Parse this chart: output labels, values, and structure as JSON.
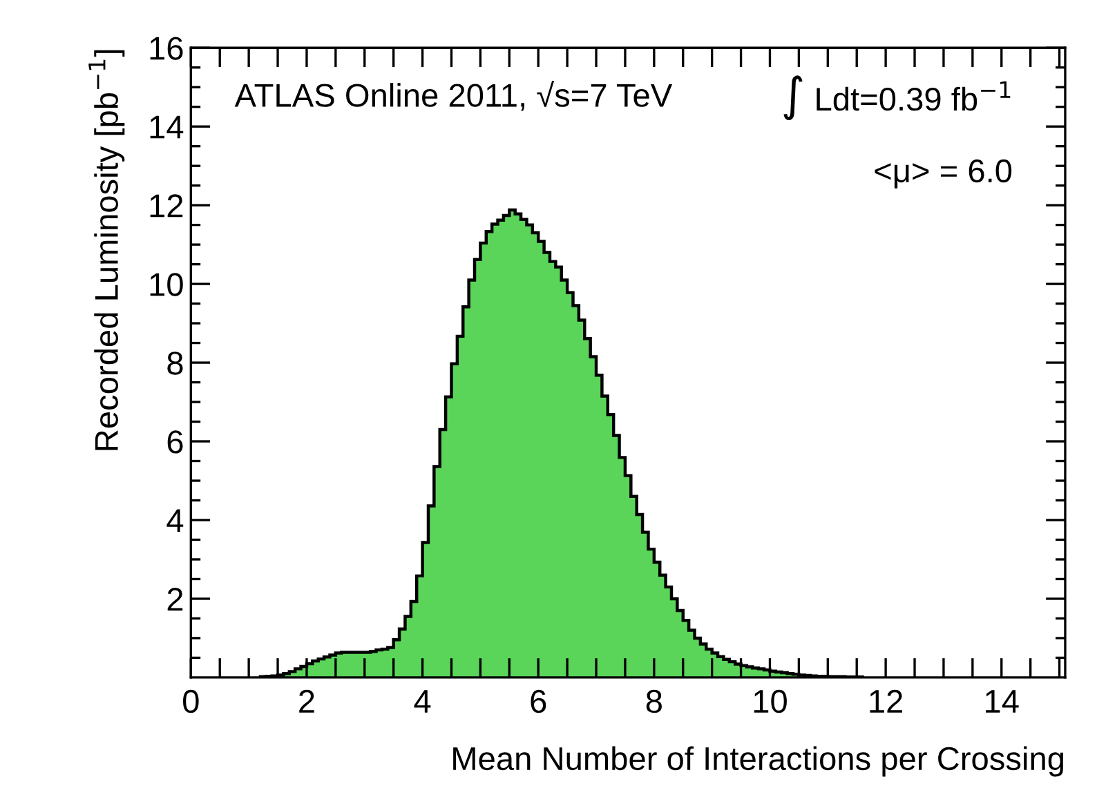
{
  "chart_data": {
    "type": "histogram",
    "xlabel": "Mean Number of Interactions per Crossing",
    "ylabel": "Recorded Luminosity [pb$^{−1}$]",
    "annotations": [
      "ATLAS Online 2011, √s=7 TeV",
      "∫ Ldt=0.39 fb$^{−1}$",
      "<μ> = 6.0"
    ],
    "color": "#5ad55a",
    "bins": [
      1.2,
      1.3,
      1.4,
      1.5,
      1.6,
      1.7,
      1.8,
      1.9,
      2.0,
      2.1,
      2.2,
      2.3,
      2.4,
      2.5,
      2.6,
      2.7,
      2.8,
      2.9,
      3.0,
      3.1,
      3.2,
      3.3,
      3.4,
      3.5,
      3.6,
      3.7,
      3.8,
      3.9,
      4.0,
      4.1,
      4.2,
      4.3,
      4.4,
      4.5,
      4.6,
      4.7,
      4.8,
      4.9,
      5.0,
      5.1,
      5.2,
      5.3,
      5.4,
      5.5,
      5.6,
      5.7,
      5.8,
      5.9,
      6.0,
      6.1,
      6.2,
      6.3,
      6.4,
      6.5,
      6.6,
      6.7,
      6.8,
      6.9,
      7.0,
      7.1,
      7.2,
      7.3,
      7.4,
      7.5,
      7.6,
      7.7,
      7.8,
      7.9,
      8.0,
      8.1,
      8.2,
      8.3,
      8.4,
      8.5,
      8.6,
      8.7,
      8.8,
      8.9,
      9.0,
      9.1,
      9.2,
      9.3,
      9.4,
      9.5,
      9.6,
      9.7,
      9.8,
      9.9,
      10.0,
      10.1,
      10.2,
      10.3,
      10.4,
      10.5,
      10.6,
      10.7,
      10.8,
      10.9,
      11.0,
      11.1,
      11.2,
      11.3,
      11.4,
      11.5,
      11.6
    ],
    "values": [
      0.02,
      0.03,
      0.04,
      0.06,
      0.1,
      0.15,
      0.22,
      0.28,
      0.35,
      0.42,
      0.47,
      0.52,
      0.57,
      0.62,
      0.64,
      0.64,
      0.64,
      0.64,
      0.64,
      0.66,
      0.7,
      0.72,
      0.76,
      0.96,
      1.23,
      1.55,
      1.93,
      2.58,
      3.43,
      4.36,
      5.36,
      6.3,
      7.13,
      7.97,
      8.67,
      9.42,
      10.1,
      10.62,
      11.04,
      11.33,
      11.52,
      11.62,
      11.74,
      11.88,
      11.78,
      11.64,
      11.5,
      11.3,
      11.08,
      10.8,
      10.57,
      10.43,
      10.1,
      9.78,
      9.45,
      9.08,
      8.61,
      8.15,
      7.68,
      7.15,
      6.68,
      6.15,
      5.59,
      5.13,
      4.6,
      4.14,
      3.69,
      3.26,
      2.93,
      2.6,
      2.3,
      2.0,
      1.7,
      1.45,
      1.2,
      1.0,
      0.85,
      0.72,
      0.62,
      0.53,
      0.46,
      0.4,
      0.34,
      0.3,
      0.27,
      0.24,
      0.22,
      0.19,
      0.16,
      0.14,
      0.12,
      0.1,
      0.08,
      0.06,
      0.05,
      0.04,
      0.03,
      0.03,
      0.02,
      0.02,
      0.02,
      0.01,
      0.01,
      0.01
    ],
    "xlim": [
      0,
      15.1
    ],
    "ylim": [
      0,
      16
    ],
    "xticks": [
      0,
      {
        "value": 0.5,
        "label": null
      },
      {
        "value": 1,
        "label": null
      },
      {
        "value": 1.5,
        "label": null
      },
      2,
      {
        "value": 2.5,
        "label": null
      },
      {
        "value": 3,
        "label": null
      },
      {
        "value": 3.5,
        "label": null
      },
      4,
      {
        "value": 4.5,
        "label": null
      },
      {
        "value": 5,
        "label": null
      },
      {
        "value": 5.5,
        "label": null
      },
      6,
      {
        "value": 6.5,
        "label": null
      },
      {
        "value": 7,
        "label": null
      },
      {
        "value": 7.5,
        "label": null
      },
      8,
      {
        "value": 8.5,
        "label": null
      },
      {
        "value": 9,
        "label": null
      },
      {
        "value": 9.5,
        "label": null
      },
      10,
      {
        "value": 10.5,
        "label": null
      },
      {
        "value": 11,
        "label": null
      },
      {
        "value": 11.5,
        "label": null
      },
      12,
      {
        "value": 12.5,
        "label": null
      },
      {
        "value": 13,
        "label": null
      },
      {
        "value": 13.5,
        "label": null
      },
      14,
      {
        "value": 14.5,
        "label": null
      },
      {
        "value": 15,
        "label": null
      }
    ],
    "yticks": [
      {
        "value": 0.5,
        "label": null
      },
      {
        "value": 1,
        "label": null
      },
      {
        "value": 1.5,
        "label": null
      },
      2,
      {
        "value": 2.5,
        "label": null
      },
      {
        "value": 3,
        "label": null
      },
      {
        "value": 3.5,
        "label": null
      },
      4,
      {
        "value": 4.5,
        "label": null
      },
      {
        "value": 5,
        "label": null
      },
      {
        "value": 5.5,
        "label": null
      },
      6,
      {
        "value": 6.5,
        "label": null
      },
      {
        "value": 7,
        "label": null
      },
      {
        "value": 7.5,
        "label": null
      },
      8,
      {
        "value": 8.5,
        "label": null
      },
      {
        "value": 9,
        "label": null
      },
      {
        "value": 9.5,
        "label": null
      },
      10,
      {
        "value": 10.5,
        "label": null
      },
      {
        "value": 11,
        "label": null
      },
      {
        "value": 11.5,
        "label": null
      },
      12,
      {
        "value": 12.5,
        "label": null
      },
      {
        "value": 13,
        "label": null
      },
      {
        "value": 13.5,
        "label": null
      },
      14,
      {
        "value": 14.5,
        "label": null
      },
      {
        "value": 15,
        "label": null
      },
      {
        "value": 15.5,
        "label": null
      },
      16
    ],
    "grid": false,
    "legend": false
  }
}
